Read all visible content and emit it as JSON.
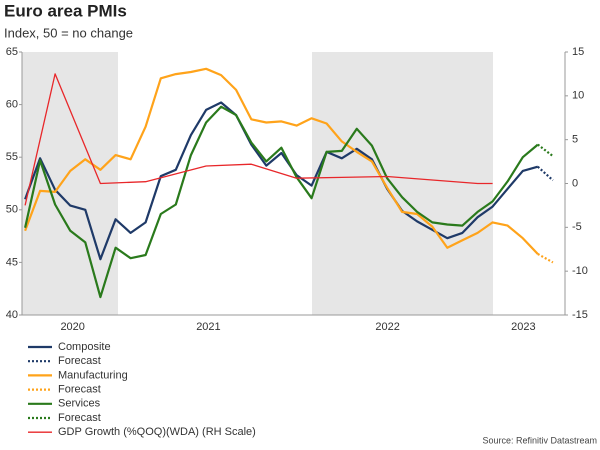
{
  "chart_data": {
    "type": "line",
    "title": "Euro area PMIs",
    "subtitle": "Index, 50 = no change",
    "source": "Source: Refinitiv Datastream",
    "x": [
      2020.417,
      2020.5,
      2020.583,
      2020.667,
      2020.75,
      2020.833,
      2020.917,
      2021.0,
      2021.083,
      2021.167,
      2021.25,
      2021.333,
      2021.417,
      2021.5,
      2021.583,
      2021.667,
      2021.75,
      2021.833,
      2021.917,
      2022.0,
      2022.083,
      2022.167,
      2022.25,
      2022.333,
      2022.417,
      2022.5,
      2022.583,
      2022.667,
      2022.75,
      2022.833,
      2022.917,
      2023.0,
      2023.083,
      2023.167,
      2023.25
    ],
    "xlim": [
      2020.4,
      2023.4
    ],
    "xticks": [
      {
        "value": 2020.68,
        "label": "2020"
      },
      {
        "value": 2021.43,
        "label": "2021"
      },
      {
        "value": 2022.42,
        "label": "2022"
      },
      {
        "value": 2023.17,
        "label": "2023"
      }
    ],
    "ylim": [
      40,
      65
    ],
    "yticks": [
      40,
      45,
      50,
      55,
      60,
      65
    ],
    "y2lim": [
      -15,
      15
    ],
    "y2ticks": [
      -15,
      -10,
      -5,
      0,
      5,
      10,
      15
    ],
    "series": [
      {
        "name": "Composite",
        "color": "#1f3a68",
        "style": "solid",
        "values": [
          51,
          54.9,
          51.9,
          50.4,
          50.0,
          45.3,
          49.1,
          47.8,
          48.8,
          53.2,
          53.8,
          57.1,
          59.5,
          60.2,
          59.0,
          56.2,
          54.2,
          55.4,
          53.3,
          52.3,
          55.5,
          54.9,
          55.8,
          54.8,
          52.0,
          49.9,
          48.9,
          48.1,
          47.3,
          47.8,
          49.3,
          50.3,
          52.0,
          53.7,
          54.1
        ]
      },
      {
        "name": "Forecast",
        "color": "#1f3a68",
        "style": "dotted",
        "x": [
          2023.25,
          2023.333
        ],
        "values": [
          54.1,
          52.8
        ]
      },
      {
        "name": "Manufacturing",
        "color": "#ffa31a",
        "style": "solid",
        "values": [
          48,
          51.8,
          51.7,
          53.7,
          54.8,
          53.8,
          55.2,
          54.8,
          57.9,
          62.5,
          62.9,
          63.1,
          63.4,
          62.8,
          61.4,
          58.6,
          58.3,
          58.4,
          58.0,
          58.7,
          58.2,
          56.5,
          55.5,
          54.6,
          52.1,
          49.8,
          49.6,
          48.4,
          46.4,
          47.1,
          47.8,
          48.8,
          48.5,
          47.3,
          45.8
        ]
      },
      {
        "name": "Forecast",
        "color": "#ffa31a",
        "style": "dotted",
        "x": [
          2023.25,
          2023.333
        ],
        "values": [
          45.8,
          45.0
        ]
      },
      {
        "name": "Services",
        "color": "#2a7a1c",
        "style": "solid",
        "values": [
          48.3,
          54.7,
          50.5,
          48.0,
          46.9,
          41.7,
          46.4,
          45.4,
          45.7,
          49.6,
          50.5,
          55.2,
          58.3,
          59.8,
          59.0,
          56.4,
          54.6,
          55.9,
          53.1,
          51.1,
          55.5,
          55.6,
          57.7,
          56.1,
          53.0,
          51.2,
          49.8,
          48.8,
          48.6,
          48.5,
          49.8,
          50.8,
          52.7,
          55.0,
          56.2
        ]
      },
      {
        "name": "Forecast",
        "color": "#2a7a1c",
        "style": "dotted",
        "x": [
          2023.25,
          2023.333
        ],
        "values": [
          56.2,
          55.1
        ]
      },
      {
        "name": "GDP Growth (%QOQ)(WDA) (RH Scale)",
        "color": "#e8272a",
        "style": "solid",
        "axis": "y2",
        "x": [
          2020.417,
          2020.583,
          2020.833,
          2021.083,
          2021.417,
          2021.667,
          2021.917,
          2022.167,
          2022.417,
          2022.667,
          2022.917,
          2023.0
        ],
        "values": [
          -2.5,
          12.5,
          0,
          0.2,
          2.0,
          2.2,
          0.6,
          0.7,
          0.8,
          0.4,
          0,
          0
        ]
      }
    ]
  }
}
